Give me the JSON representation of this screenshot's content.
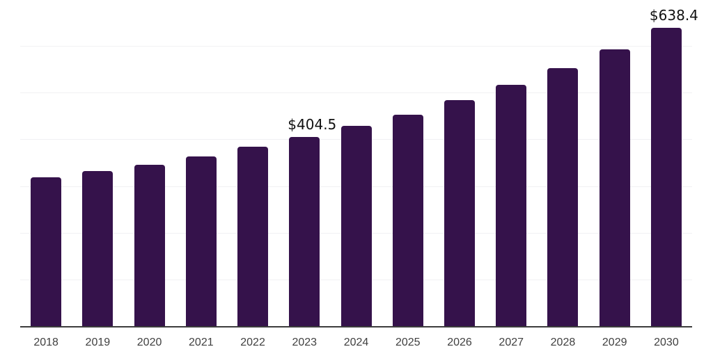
{
  "chart_data": {
    "type": "bar",
    "title": "",
    "xlabel": "",
    "ylabel": "",
    "categories": [
      "2018",
      "2019",
      "2020",
      "2021",
      "2022",
      "2023",
      "2024",
      "2025",
      "2026",
      "2027",
      "2028",
      "2029",
      "2030"
    ],
    "values": [
      318.3,
      331.7,
      345.5,
      363.8,
      383.7,
      404.5,
      428.3,
      453.0,
      483.7,
      516.4,
      552.1,
      592.7,
      638.4
    ],
    "data_labels": [
      "",
      "",
      "",
      "",
      "",
      "$404.5",
      "",
      "",
      "",
      "",
      "",
      "",
      "$638.4"
    ],
    "ylim": [
      0,
      700
    ],
    "gridline_step": 100,
    "grid": true,
    "legend": false,
    "colors": {
      "bar": "#35124B",
      "axis_line": "#3C3C3C",
      "gridline": "#F1F1F3",
      "tick_label": "#404040",
      "value_label": "#111111",
      "background": "#FFFFFF"
    }
  }
}
